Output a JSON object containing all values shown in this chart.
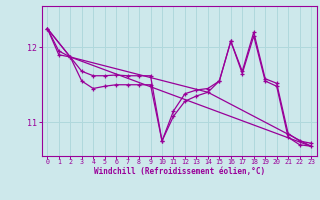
{
  "background_color": "#cde8eb",
  "line_color": "#990099",
  "grid_color": "#b0d8dc",
  "xlabel": "Windchill (Refroidissement éolien,°C)",
  "xlabel_color": "#990099",
  "tick_color": "#990099",
  "spine_color": "#990099",
  "xlim": [
    -0.5,
    23.5
  ],
  "ylim": [
    10.55,
    12.55
  ],
  "yticks": [
    11,
    12
  ],
  "xticks": [
    0,
    1,
    2,
    3,
    4,
    5,
    6,
    7,
    8,
    9,
    10,
    11,
    12,
    13,
    14,
    15,
    16,
    17,
    18,
    19,
    20,
    21,
    22,
    23
  ],
  "line1_x": [
    0,
    1,
    2,
    3,
    4,
    5,
    6,
    7,
    8,
    9,
    10,
    11,
    12,
    13,
    14,
    15,
    16,
    17,
    18,
    19,
    20,
    21,
    22,
    23
  ],
  "line1_y": [
    12.25,
    11.95,
    11.87,
    11.68,
    11.62,
    11.62,
    11.63,
    11.62,
    11.62,
    11.62,
    10.75,
    11.15,
    11.38,
    11.43,
    11.45,
    11.55,
    12.08,
    11.68,
    12.2,
    11.58,
    11.52,
    10.85,
    10.75,
    10.72
  ],
  "line2_x": [
    0,
    1,
    2,
    3,
    4,
    5,
    6,
    7,
    8,
    9,
    10,
    11,
    12,
    13,
    14,
    15,
    16,
    17,
    18,
    19,
    20,
    21,
    22,
    23
  ],
  "line2_y": [
    12.25,
    11.9,
    11.87,
    11.55,
    11.45,
    11.48,
    11.5,
    11.5,
    11.5,
    11.5,
    10.75,
    11.08,
    11.28,
    11.35,
    11.4,
    11.55,
    12.08,
    11.65,
    12.15,
    11.55,
    11.48,
    10.8,
    10.7,
    10.68
  ],
  "line3_x": [
    0,
    2,
    23
  ],
  "line3_y": [
    12.25,
    11.87,
    10.68
  ],
  "line4_x": [
    0,
    2,
    14,
    23
  ],
  "line4_y": [
    12.25,
    11.87,
    11.4,
    10.68
  ]
}
